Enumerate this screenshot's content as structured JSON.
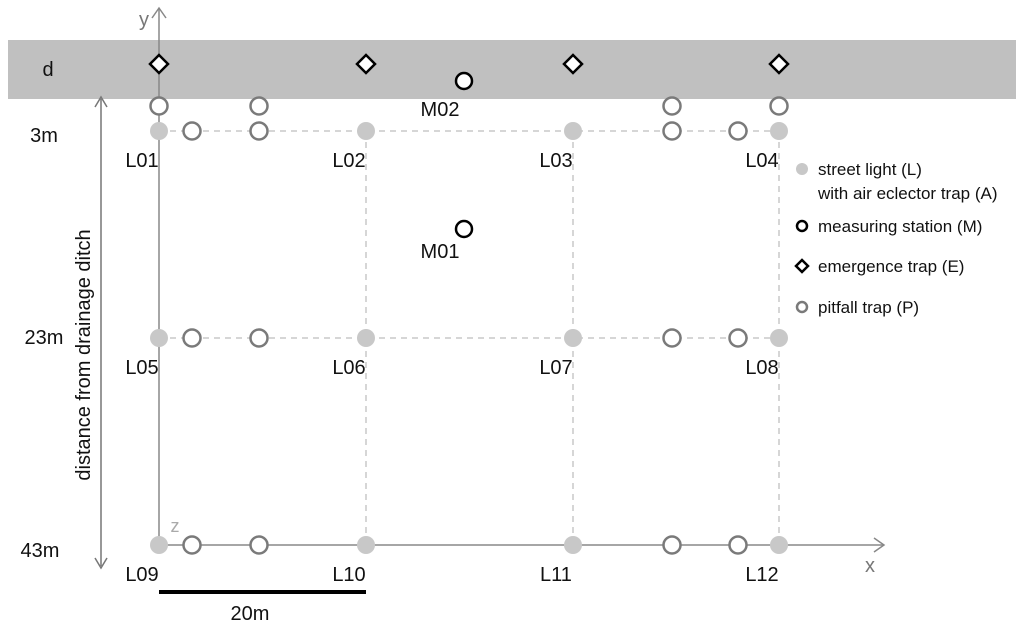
{
  "axes": {
    "x_label": "x",
    "y_label": "y",
    "z_label": "z"
  },
  "ditch_label": "d",
  "distance_axis_label": "distance from drainage ditch",
  "row_labels": [
    "3m",
    "23m",
    "43m"
  ],
  "scale_label": "20m",
  "street_lights": [
    {
      "id": "L01",
      "row": 0,
      "col": 0
    },
    {
      "id": "L02",
      "row": 0,
      "col": 1
    },
    {
      "id": "L03",
      "row": 0,
      "col": 2
    },
    {
      "id": "L04",
      "row": 0,
      "col": 3
    },
    {
      "id": "L05",
      "row": 1,
      "col": 0
    },
    {
      "id": "L06",
      "row": 1,
      "col": 1
    },
    {
      "id": "L07",
      "row": 1,
      "col": 2
    },
    {
      "id": "L08",
      "row": 1,
      "col": 3
    },
    {
      "id": "L09",
      "row": 2,
      "col": 0
    },
    {
      "id": "L10",
      "row": 2,
      "col": 1
    },
    {
      "id": "L11",
      "row": 2,
      "col": 2
    },
    {
      "id": "L12",
      "row": 2,
      "col": 3
    }
  ],
  "measuring_stations": [
    "M01",
    "M02"
  ],
  "emergence_trap_count": 4,
  "legend": [
    {
      "symbol": "street-light",
      "lines": [
        "street light (L)",
        "with air eclector trap (A)"
      ]
    },
    {
      "symbol": "measuring-station",
      "lines": [
        "measuring station (M)"
      ]
    },
    {
      "symbol": "emergence-trap",
      "lines": [
        "emergence trap (E)"
      ]
    },
    {
      "symbol": "pitfall-trap",
      "lines": [
        "pitfall trap (P)"
      ]
    }
  ],
  "colors": {
    "ditch_band": "#c0c0c0",
    "street_light": "#c8c8c8",
    "pitfall_stroke": "#7a7a7a",
    "grid_dash": "#c8c8c8",
    "axis": "#888888",
    "ink": "#000000"
  }
}
